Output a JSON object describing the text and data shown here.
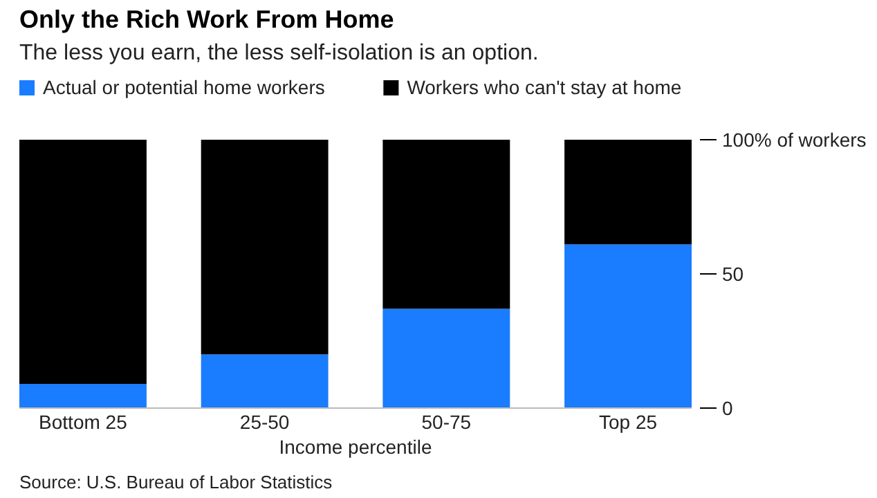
{
  "chart_data": {
    "type": "bar",
    "title": "Only the Rich Work From Home",
    "subtitle": "The less you earn, the less self-isolation is an option.",
    "categories": [
      "Bottom 25",
      "25-50",
      "50-75",
      "Top 25"
    ],
    "stacked": true,
    "series": [
      {
        "name": "Actual or potential home workers",
        "color": "#1a7cff",
        "values": [
          9,
          20,
          37,
          61
        ]
      },
      {
        "name": "Workers who can't stay at home",
        "color": "#000000",
        "values": [
          91,
          80,
          63,
          39
        ]
      }
    ],
    "ylim": [
      0,
      100
    ],
    "yticks": [
      {
        "value": 0,
        "label": "0"
      },
      {
        "value": 50,
        "label": "50"
      },
      {
        "value": 100,
        "label": "100% of workers"
      }
    ],
    "xlabel": "Income percentile",
    "legend": "top left",
    "grid": false,
    "annotations": [
      "Source: U.S. Bureau of Labor Statistics"
    ]
  }
}
